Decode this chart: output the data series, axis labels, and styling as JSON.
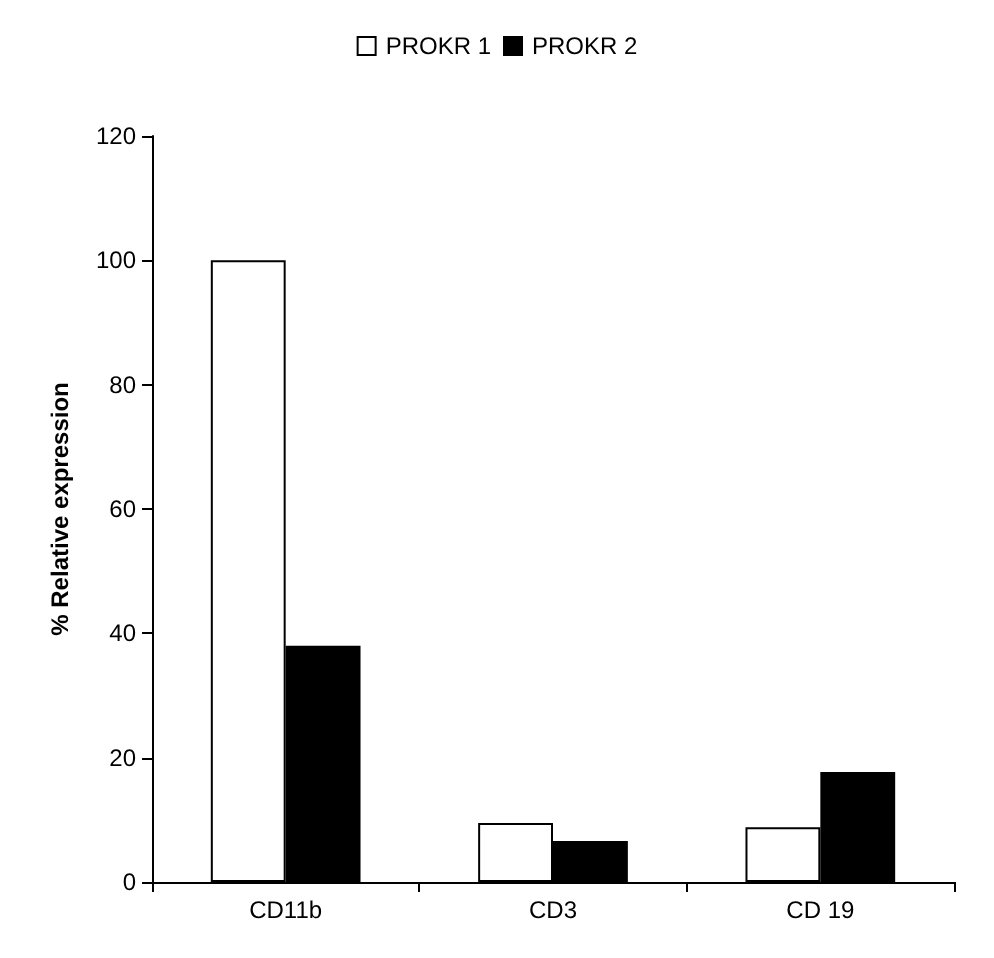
{
  "chart_data": {
    "type": "bar",
    "ylabel": "% Relative expression",
    "categories": [
      "CD11b",
      "CD3",
      "CD 19"
    ],
    "series": [
      {
        "name": "PROKR 1",
        "color": "#ffffff",
        "values": [
          100,
          9.5,
          8.8
        ]
      },
      {
        "name": "PROKR 2",
        "color": "#000000",
        "values": [
          38,
          6.6,
          17.7
        ]
      }
    ],
    "ylim": [
      0,
      120
    ],
    "yticks": [
      0,
      20,
      40,
      60,
      80,
      100,
      120
    ],
    "grid": false,
    "legend": "top"
  }
}
